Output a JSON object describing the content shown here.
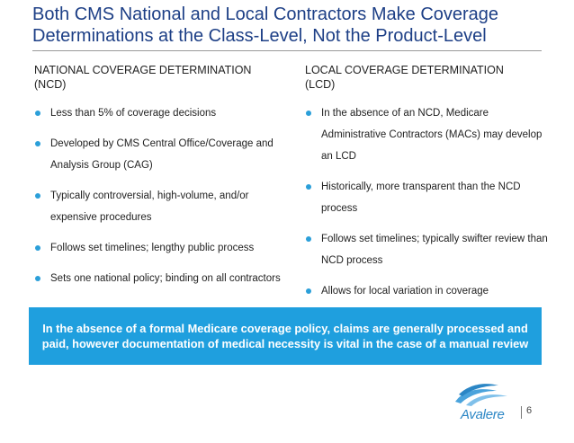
{
  "slide": {
    "title_lines": [
      "Both CMS National and Local Contractors Make Coverage",
      "Determinations at the Class-Level, Not the Product-Level"
    ]
  },
  "left_column": {
    "heading_lines": [
      "NATIONAL COVERAGE DETERMINATION",
      "(NCD)"
    ],
    "bullets": [
      "Less than 5% of coverage decisions",
      "Developed by CMS Central Office/Coverage and Analysis Group (CAG)",
      "Typically controversial, high-volume, and/or expensive procedures",
      "Follows set timelines; lengthy public process",
      "Sets one national policy; binding on all contractors"
    ]
  },
  "right_column": {
    "heading_lines": [
      "LOCAL COVERAGE DETERMINATION",
      "(LCD)"
    ],
    "bullets": [
      "In the absence of an NCD, Medicare Administrative Contractors (MACs) may develop an LCD",
      "Historically, more transparent than the NCD process",
      "Follows set timelines; typically swifter review than NCD process",
      "Allows for local variation in coverage"
    ]
  },
  "banner": {
    "text": "In the absence of a formal Medicare coverage policy, claims are generally processed and paid, however documentation of medical necessity is vital in the case of a manual review"
  },
  "footer": {
    "logo_text": "Avalere",
    "page_number": "6"
  },
  "colors": {
    "title": "#1d3f86",
    "bullet": "#2b9fd9",
    "banner": "#1f9fde",
    "logo": "#2b86c5"
  }
}
